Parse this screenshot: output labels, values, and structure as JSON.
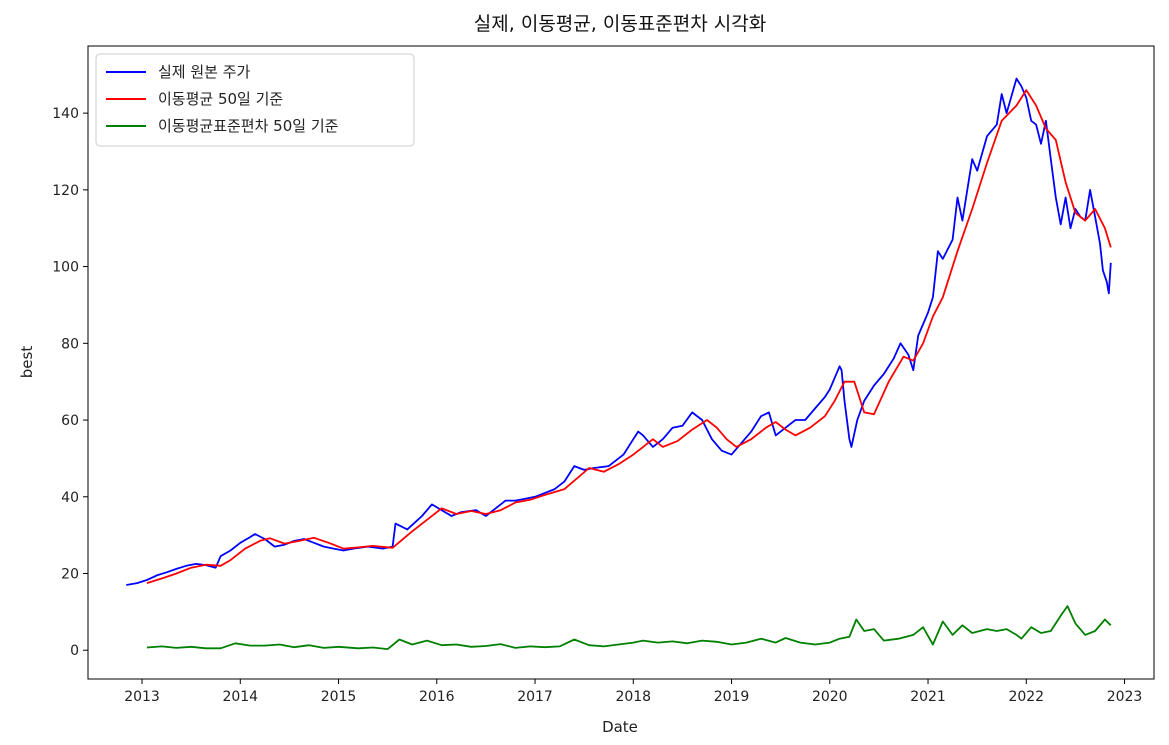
{
  "chart_data": {
    "type": "line",
    "title": "실제, 이동평균, 이동표준편차 시각화",
    "xlabel": "Date",
    "ylabel": "best",
    "xlim": [
      2012.45,
      2023.3
    ],
    "ylim": [
      -7.5,
      157.5
    ],
    "x_ticks": [
      2013,
      2014,
      2015,
      2016,
      2017,
      2018,
      2019,
      2020,
      2021,
      2022,
      2023
    ],
    "x_tick_labels": [
      "2013",
      "2014",
      "2015",
      "2016",
      "2017",
      "2018",
      "2019",
      "2020",
      "2021",
      "2022",
      "2023"
    ],
    "y_ticks": [
      0,
      20,
      40,
      60,
      80,
      100,
      120,
      140
    ],
    "y_tick_labels": [
      "0",
      "20",
      "40",
      "60",
      "80",
      "100",
      "120",
      "140"
    ],
    "grid": false,
    "legend_position": "top-left",
    "series": [
      {
        "name": "실제 원본 주가",
        "color": "#0000ff",
        "points": [
          [
            2012.84,
            17.0
          ],
          [
            2012.95,
            17.5
          ],
          [
            2013.05,
            18.3
          ],
          [
            2013.15,
            19.5
          ],
          [
            2013.25,
            20.3
          ],
          [
            2013.35,
            21.2
          ],
          [
            2013.45,
            22.0
          ],
          [
            2013.55,
            22.5
          ],
          [
            2013.65,
            22.2
          ],
          [
            2013.75,
            21.5
          ],
          [
            2013.8,
            24.5
          ],
          [
            2013.9,
            26.0
          ],
          [
            2014.0,
            28.0
          ],
          [
            2014.1,
            29.5
          ],
          [
            2014.15,
            30.3
          ],
          [
            2014.25,
            29.0
          ],
          [
            2014.35,
            27.0
          ],
          [
            2014.45,
            27.5
          ],
          [
            2014.55,
            28.5
          ],
          [
            2014.65,
            29.0
          ],
          [
            2014.75,
            28.0
          ],
          [
            2014.85,
            27.0
          ],
          [
            2014.95,
            26.5
          ],
          [
            2015.05,
            26.0
          ],
          [
            2015.15,
            26.5
          ],
          [
            2015.3,
            27.0
          ],
          [
            2015.45,
            26.5
          ],
          [
            2015.55,
            27.0
          ],
          [
            2015.58,
            33.0
          ],
          [
            2015.7,
            31.5
          ],
          [
            2015.85,
            35.0
          ],
          [
            2015.95,
            38.0
          ],
          [
            2016.05,
            36.5
          ],
          [
            2016.15,
            35.0
          ],
          [
            2016.25,
            36.0
          ],
          [
            2016.4,
            36.5
          ],
          [
            2016.5,
            35.0
          ],
          [
            2016.6,
            37.0
          ],
          [
            2016.7,
            39.0
          ],
          [
            2016.8,
            39.0
          ],
          [
            2016.9,
            39.5
          ],
          [
            2017.0,
            40.0
          ],
          [
            2017.1,
            41.0
          ],
          [
            2017.2,
            42.0
          ],
          [
            2017.3,
            44.0
          ],
          [
            2017.4,
            48.0
          ],
          [
            2017.5,
            47.0
          ],
          [
            2017.6,
            47.5
          ],
          [
            2017.75,
            48.0
          ],
          [
            2017.9,
            51.0
          ],
          [
            2018.0,
            55.0
          ],
          [
            2018.05,
            57.0
          ],
          [
            2018.1,
            56.0
          ],
          [
            2018.2,
            53.0
          ],
          [
            2018.3,
            55.0
          ],
          [
            2018.4,
            58.0
          ],
          [
            2018.5,
            58.5
          ],
          [
            2018.6,
            62.0
          ],
          [
            2018.7,
            60.0
          ],
          [
            2018.8,
            55.0
          ],
          [
            2018.9,
            52.0
          ],
          [
            2019.0,
            51.0
          ],
          [
            2019.1,
            54.0
          ],
          [
            2019.2,
            57.0
          ],
          [
            2019.3,
            61.0
          ],
          [
            2019.38,
            62.0
          ],
          [
            2019.45,
            56.0
          ],
          [
            2019.55,
            58.0
          ],
          [
            2019.65,
            60.0
          ],
          [
            2019.75,
            60.0
          ],
          [
            2019.85,
            63.0
          ],
          [
            2019.95,
            66.0
          ],
          [
            2020.0,
            68.0
          ],
          [
            2020.05,
            71.0
          ],
          [
            2020.1,
            74.0
          ],
          [
            2020.12,
            73.0
          ],
          [
            2020.15,
            65.0
          ],
          [
            2020.2,
            55.0
          ],
          [
            2020.22,
            53.0
          ],
          [
            2020.28,
            60.0
          ],
          [
            2020.35,
            65.0
          ],
          [
            2020.45,
            69.0
          ],
          [
            2020.55,
            72.0
          ],
          [
            2020.65,
            76.0
          ],
          [
            2020.72,
            80.0
          ],
          [
            2020.8,
            77.0
          ],
          [
            2020.85,
            73.0
          ],
          [
            2020.9,
            82.0
          ],
          [
            2021.0,
            88.0
          ],
          [
            2021.05,
            92.0
          ],
          [
            2021.1,
            104.0
          ],
          [
            2021.15,
            102.0
          ],
          [
            2021.25,
            107.0
          ],
          [
            2021.3,
            118.0
          ],
          [
            2021.35,
            112.0
          ],
          [
            2021.45,
            128.0
          ],
          [
            2021.5,
            125.0
          ],
          [
            2021.6,
            134.0
          ],
          [
            2021.7,
            137.0
          ],
          [
            2021.75,
            145.0
          ],
          [
            2021.8,
            140.0
          ],
          [
            2021.9,
            149.0
          ],
          [
            2021.95,
            147.0
          ],
          [
            2022.0,
            144.0
          ],
          [
            2022.05,
            138.0
          ],
          [
            2022.1,
            137.0
          ],
          [
            2022.15,
            132.0
          ],
          [
            2022.2,
            138.0
          ],
          [
            2022.25,
            128.0
          ],
          [
            2022.3,
            118.0
          ],
          [
            2022.35,
            111.0
          ],
          [
            2022.4,
            118.0
          ],
          [
            2022.45,
            110.0
          ],
          [
            2022.5,
            115.0
          ],
          [
            2022.55,
            113.0
          ],
          [
            2022.6,
            112.0
          ],
          [
            2022.65,
            120.0
          ],
          [
            2022.7,
            113.0
          ],
          [
            2022.75,
            106.0
          ],
          [
            2022.78,
            99.0
          ],
          [
            2022.82,
            96.0
          ],
          [
            2022.84,
            93.0
          ],
          [
            2022.86,
            101.0
          ]
        ]
      },
      {
        "name": "이동평균 50일 기준",
        "color": "#ff0000",
        "points": [
          [
            2013.05,
            17.5
          ],
          [
            2013.2,
            18.7
          ],
          [
            2013.35,
            20.0
          ],
          [
            2013.5,
            21.5
          ],
          [
            2013.65,
            22.3
          ],
          [
            2013.8,
            22.0
          ],
          [
            2013.9,
            23.5
          ],
          [
            2014.05,
            26.5
          ],
          [
            2014.2,
            28.5
          ],
          [
            2014.3,
            29.2
          ],
          [
            2014.45,
            27.8
          ],
          [
            2014.6,
            28.5
          ],
          [
            2014.75,
            29.3
          ],
          [
            2014.9,
            28.0
          ],
          [
            2015.05,
            26.5
          ],
          [
            2015.2,
            26.8
          ],
          [
            2015.35,
            27.2
          ],
          [
            2015.55,
            26.7
          ],
          [
            2015.75,
            31.0
          ],
          [
            2015.9,
            34.0
          ],
          [
            2016.05,
            37.0
          ],
          [
            2016.2,
            35.5
          ],
          [
            2016.35,
            36.3
          ],
          [
            2016.5,
            35.5
          ],
          [
            2016.65,
            36.5
          ],
          [
            2016.8,
            38.5
          ],
          [
            2016.95,
            39.2
          ],
          [
            2017.1,
            40.5
          ],
          [
            2017.3,
            42.0
          ],
          [
            2017.55,
            47.5
          ],
          [
            2017.7,
            46.5
          ],
          [
            2017.85,
            48.5
          ],
          [
            2018.0,
            51.0
          ],
          [
            2018.1,
            53.0
          ],
          [
            2018.2,
            55.0
          ],
          [
            2018.3,
            53.0
          ],
          [
            2018.45,
            54.5
          ],
          [
            2018.6,
            57.5
          ],
          [
            2018.75,
            60.0
          ],
          [
            2018.85,
            58.0
          ],
          [
            2018.95,
            55.0
          ],
          [
            2019.05,
            53.0
          ],
          [
            2019.2,
            55.0
          ],
          [
            2019.35,
            58.0
          ],
          [
            2019.45,
            59.5
          ],
          [
            2019.55,
            57.5
          ],
          [
            2019.65,
            56.0
          ],
          [
            2019.8,
            58.0
          ],
          [
            2019.95,
            61.0
          ],
          [
            2020.05,
            65.0
          ],
          [
            2020.15,
            70.0
          ],
          [
            2020.25,
            70.0
          ],
          [
            2020.35,
            62.0
          ],
          [
            2020.45,
            61.5
          ],
          [
            2020.6,
            70.0
          ],
          [
            2020.75,
            76.5
          ],
          [
            2020.85,
            75.5
          ],
          [
            2020.95,
            80.0
          ],
          [
            2021.05,
            87.0
          ],
          [
            2021.15,
            92.0
          ],
          [
            2021.3,
            104.0
          ],
          [
            2021.45,
            115.0
          ],
          [
            2021.6,
            127.0
          ],
          [
            2021.75,
            138.0
          ],
          [
            2021.9,
            142.0
          ],
          [
            2022.0,
            146.0
          ],
          [
            2022.1,
            142.0
          ],
          [
            2022.2,
            136.0
          ],
          [
            2022.3,
            133.0
          ],
          [
            2022.4,
            122.0
          ],
          [
            2022.5,
            114.0
          ],
          [
            2022.6,
            112.0
          ],
          [
            2022.7,
            115.0
          ],
          [
            2022.8,
            110.0
          ],
          [
            2022.86,
            105.0
          ]
        ]
      },
      {
        "name": "이동평균표준편차 50일 기준",
        "color": "#008000",
        "points": [
          [
            2013.05,
            0.7
          ],
          [
            2013.2,
            1.0
          ],
          [
            2013.35,
            0.6
          ],
          [
            2013.5,
            0.9
          ],
          [
            2013.65,
            0.5
          ],
          [
            2013.8,
            0.5
          ],
          [
            2013.95,
            1.8
          ],
          [
            2014.1,
            1.2
          ],
          [
            2014.25,
            1.2
          ],
          [
            2014.4,
            1.5
          ],
          [
            2014.55,
            0.8
          ],
          [
            2014.7,
            1.3
          ],
          [
            2014.85,
            0.6
          ],
          [
            2015.0,
            0.9
          ],
          [
            2015.2,
            0.5
          ],
          [
            2015.35,
            0.7
          ],
          [
            2015.5,
            0.3
          ],
          [
            2015.62,
            2.8
          ],
          [
            2015.75,
            1.5
          ],
          [
            2015.9,
            2.5
          ],
          [
            2016.05,
            1.3
          ],
          [
            2016.2,
            1.5
          ],
          [
            2016.35,
            0.9
          ],
          [
            2016.5,
            1.1
          ],
          [
            2016.65,
            1.6
          ],
          [
            2016.8,
            0.6
          ],
          [
            2016.95,
            1.0
          ],
          [
            2017.1,
            0.8
          ],
          [
            2017.25,
            1.0
          ],
          [
            2017.4,
            2.8
          ],
          [
            2017.55,
            1.3
          ],
          [
            2017.7,
            1.0
          ],
          [
            2017.85,
            1.5
          ],
          [
            2018.0,
            2.0
          ],
          [
            2018.1,
            2.5
          ],
          [
            2018.25,
            2.0
          ],
          [
            2018.4,
            2.3
          ],
          [
            2018.55,
            1.8
          ],
          [
            2018.7,
            2.5
          ],
          [
            2018.85,
            2.2
          ],
          [
            2019.0,
            1.5
          ],
          [
            2019.15,
            2.0
          ],
          [
            2019.3,
            3.0
          ],
          [
            2019.45,
            2.0
          ],
          [
            2019.55,
            3.2
          ],
          [
            2019.7,
            2.0
          ],
          [
            2019.85,
            1.5
          ],
          [
            2020.0,
            2.0
          ],
          [
            2020.1,
            3.0
          ],
          [
            2020.2,
            3.5
          ],
          [
            2020.27,
            8.0
          ],
          [
            2020.35,
            5.0
          ],
          [
            2020.45,
            5.5
          ],
          [
            2020.55,
            2.5
          ],
          [
            2020.7,
            3.0
          ],
          [
            2020.85,
            4.0
          ],
          [
            2020.95,
            6.0
          ],
          [
            2021.05,
            1.5
          ],
          [
            2021.15,
            7.5
          ],
          [
            2021.25,
            4.0
          ],
          [
            2021.35,
            6.5
          ],
          [
            2021.45,
            4.5
          ],
          [
            2021.6,
            5.5
          ],
          [
            2021.7,
            5.0
          ],
          [
            2021.8,
            5.5
          ],
          [
            2021.9,
            4.0
          ],
          [
            2021.95,
            3.0
          ],
          [
            2022.05,
            6.0
          ],
          [
            2022.15,
            4.5
          ],
          [
            2022.25,
            5.0
          ],
          [
            2022.35,
            9.0
          ],
          [
            2022.42,
            11.5
          ],
          [
            2022.5,
            7.0
          ],
          [
            2022.6,
            4.0
          ],
          [
            2022.7,
            5.0
          ],
          [
            2022.8,
            8.0
          ],
          [
            2022.86,
            6.5
          ]
        ]
      }
    ]
  }
}
